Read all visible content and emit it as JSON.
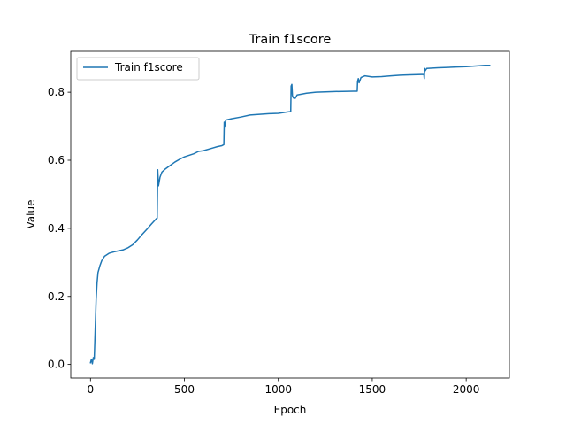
{
  "chart_data": {
    "type": "line",
    "title": "Train f1score",
    "xlabel": "Epoch",
    "ylabel": "Value",
    "xlim": [
      -105,
      2230
    ],
    "ylim": [
      -0.04,
      0.92
    ],
    "xticks": [
      0,
      500,
      1000,
      1500,
      2000
    ],
    "xtick_labels": [
      "0",
      "500",
      "1000",
      "1500",
      "2000"
    ],
    "yticks": [
      0.0,
      0.2,
      0.4,
      0.6,
      0.8
    ],
    "ytick_labels": [
      "0.0",
      "0.2",
      "0.4",
      "0.6",
      "0.8"
    ],
    "grid": false,
    "legend_position": "top-left",
    "series": [
      {
        "name": "Train f1score",
        "color": "#1f77b4",
        "points": [
          [
            0,
            0.005
          ],
          [
            5,
            0.015
          ],
          [
            10,
            0.002
          ],
          [
            15,
            0.02
          ],
          [
            20,
            0.015
          ],
          [
            25,
            0.1
          ],
          [
            30,
            0.19
          ],
          [
            35,
            0.24
          ],
          [
            40,
            0.27
          ],
          [
            50,
            0.29
          ],
          [
            60,
            0.305
          ],
          [
            75,
            0.318
          ],
          [
            100,
            0.327
          ],
          [
            125,
            0.331
          ],
          [
            150,
            0.334
          ],
          [
            175,
            0.337
          ],
          [
            200,
            0.343
          ],
          [
            225,
            0.352
          ],
          [
            250,
            0.366
          ],
          [
            275,
            0.382
          ],
          [
            300,
            0.397
          ],
          [
            325,
            0.413
          ],
          [
            350,
            0.428
          ],
          [
            355,
            0.43
          ],
          [
            358,
            0.572
          ],
          [
            362,
            0.525
          ],
          [
            370,
            0.55
          ],
          [
            380,
            0.565
          ],
          [
            400,
            0.575
          ],
          [
            425,
            0.585
          ],
          [
            450,
            0.595
          ],
          [
            475,
            0.603
          ],
          [
            500,
            0.61
          ],
          [
            550,
            0.619
          ],
          [
            575,
            0.626
          ],
          [
            600,
            0.628
          ],
          [
            650,
            0.636
          ],
          [
            675,
            0.64
          ],
          [
            700,
            0.643
          ],
          [
            710,
            0.646
          ],
          [
            712,
            0.712
          ],
          [
            715,
            0.7
          ],
          [
            720,
            0.718
          ],
          [
            750,
            0.722
          ],
          [
            800,
            0.727
          ],
          [
            850,
            0.733
          ],
          [
            900,
            0.735
          ],
          [
            950,
            0.737
          ],
          [
            1000,
            0.738
          ],
          [
            1050,
            0.742
          ],
          [
            1066,
            0.743
          ],
          [
            1068,
            0.818
          ],
          [
            1072,
            0.823
          ],
          [
            1075,
            0.79
          ],
          [
            1080,
            0.783
          ],
          [
            1090,
            0.782
          ],
          [
            1100,
            0.792
          ],
          [
            1150,
            0.797
          ],
          [
            1200,
            0.8
          ],
          [
            1300,
            0.802
          ],
          [
            1400,
            0.803
          ],
          [
            1420,
            0.803
          ],
          [
            1422,
            0.832
          ],
          [
            1426,
            0.84
          ],
          [
            1430,
            0.828
          ],
          [
            1440,
            0.843
          ],
          [
            1460,
            0.848
          ],
          [
            1500,
            0.845
          ],
          [
            1550,
            0.846
          ],
          [
            1600,
            0.848
          ],
          [
            1650,
            0.85
          ],
          [
            1700,
            0.851
          ],
          [
            1760,
            0.852
          ],
          [
            1775,
            0.852
          ],
          [
            1777,
            0.84
          ],
          [
            1779,
            0.87
          ],
          [
            1782,
            0.863
          ],
          [
            1790,
            0.87
          ],
          [
            1850,
            0.872
          ],
          [
            1900,
            0.873
          ],
          [
            1950,
            0.874
          ],
          [
            2000,
            0.875
          ],
          [
            2050,
            0.877
          ],
          [
            2100,
            0.879
          ],
          [
            2125,
            0.879
          ]
        ]
      }
    ]
  }
}
